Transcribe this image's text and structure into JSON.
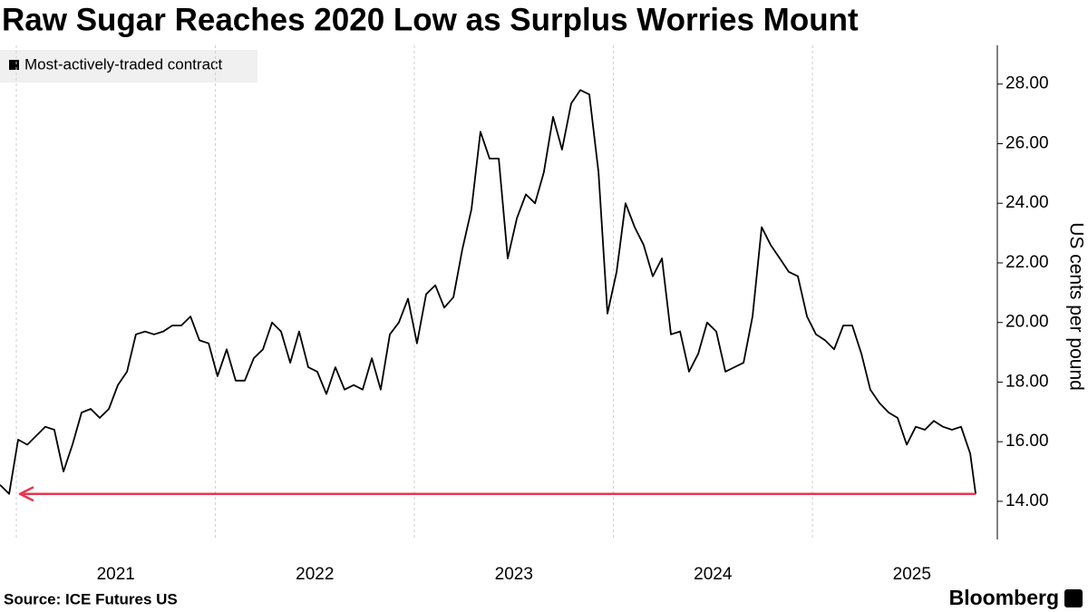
{
  "chart_data": {
    "type": "line",
    "title": "Raw Sugar Reaches 2020 Low as Surplus Worries Mount",
    "y_label": "US cents per pound",
    "source": "Source: ICE Futures US",
    "brand": "Bloomberg",
    "x": [
      2020.918,
      2020.964,
      2021.009,
      2021.055,
      2021.1,
      2021.146,
      2021.191,
      2021.237,
      2021.282,
      2021.328,
      2021.374,
      2021.419,
      2021.465,
      2021.51,
      2021.556,
      2021.601,
      2021.647,
      2021.692,
      2021.738,
      2021.784,
      2021.829,
      2021.875,
      2021.92,
      2021.966,
      2022.011,
      2022.057,
      2022.102,
      2022.148,
      2022.193,
      2022.239,
      2022.285,
      2022.33,
      2022.376,
      2022.421,
      2022.467,
      2022.512,
      2022.558,
      2022.603,
      2022.649,
      2022.695,
      2022.74,
      2022.786,
      2022.831,
      2022.877,
      2022.922,
      2022.968,
      2023.013,
      2023.059,
      2023.105,
      2023.15,
      2023.196,
      2023.241,
      2023.287,
      2023.332,
      2023.378,
      2023.424,
      2023.469,
      2023.515,
      2023.56,
      2023.606,
      2023.651,
      2023.697,
      2023.742,
      2023.788,
      2023.834,
      2023.879,
      2023.925,
      2023.97,
      2024.016,
      2024.061,
      2024.107,
      2024.152,
      2024.198,
      2024.244,
      2024.289,
      2024.335,
      2024.38,
      2024.426,
      2024.471,
      2024.517,
      2024.563,
      2024.608,
      2024.654,
      2024.699,
      2024.745,
      2024.79,
      2024.836,
      2024.881,
      2024.927,
      2024.973,
      2025.018,
      2025.064,
      2025.109,
      2025.155,
      2025.2,
      2025.246,
      2025.291,
      2025.337,
      2025.383,
      2025.428,
      2025.474,
      2025.519,
      2025.565,
      2025.61,
      2025.656,
      2025.701,
      2025.747,
      2025.793,
      2025.82
    ],
    "series": [
      {
        "name": "Most-actively-traded contract",
        "color": "#000000",
        "values": [
          14.55,
          14.25,
          16.07,
          15.9,
          16.2,
          16.5,
          16.4,
          15.0,
          15.9,
          16.98,
          17.1,
          16.8,
          17.1,
          17.9,
          18.35,
          19.6,
          19.7,
          19.6,
          19.7,
          19.9,
          19.9,
          20.2,
          19.4,
          19.3,
          18.2,
          19.1,
          18.05,
          18.05,
          18.8,
          19.1,
          20.0,
          19.7,
          18.65,
          19.7,
          18.5,
          18.35,
          17.6,
          18.5,
          17.75,
          17.9,
          17.75,
          18.8,
          17.75,
          19.6,
          20.0,
          20.8,
          19.3,
          20.95,
          21.25,
          20.5,
          20.85,
          22.45,
          23.8,
          26.4,
          25.5,
          25.5,
          22.15,
          23.5,
          24.3,
          24.0,
          25.05,
          26.9,
          25.8,
          27.35,
          27.8,
          27.65,
          25.05,
          20.3,
          21.7,
          24.0,
          23.2,
          22.6,
          21.55,
          22.15,
          19.6,
          19.7,
          18.35,
          18.95,
          20.0,
          19.7,
          18.35,
          18.5,
          18.65,
          20.2,
          23.2,
          22.6,
          22.15,
          21.7,
          21.55,
          20.2,
          19.6,
          19.4,
          19.1,
          19.9,
          19.9,
          18.95,
          17.75,
          17.3,
          16.98,
          16.8,
          15.9,
          16.5,
          16.4,
          16.7,
          16.5,
          16.4,
          16.5,
          15.6,
          14.25
        ]
      }
    ],
    "annotation_color": "#e8364f",
    "xlim": [
      2020.918,
      2025.929
    ],
    "xticks": [
      2021,
      2022,
      2023,
      2024,
      2025
    ],
    "xgrid": true,
    "ylim": [
      12.72,
      29.3
    ],
    "yticks": [
      {
        "value": 14,
        "label": "14.00"
      },
      {
        "value": 16,
        "label": "16.00"
      },
      {
        "value": 18,
        "label": "18.00"
      },
      {
        "value": 20,
        "label": "20.00"
      },
      {
        "value": 22,
        "label": "22.00"
      },
      {
        "value": 24,
        "label": "24.00"
      },
      {
        "value": 26,
        "label": "26.00"
      },
      {
        "value": 28,
        "label": "28.00"
      }
    ],
    "y_axis_side": "right"
  }
}
